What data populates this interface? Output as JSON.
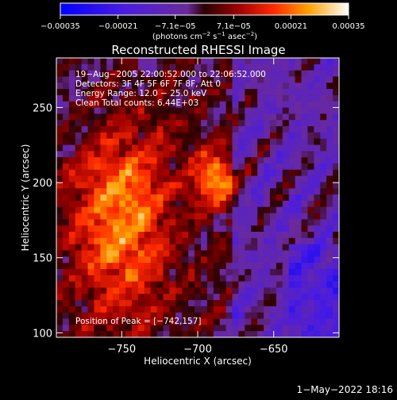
{
  "chart_data": {
    "type": "heatmap",
    "title": "Reconstructed RHESSI Image",
    "xlabel": "Heliocentric X (arcsec)",
    "ylabel": "Heliocentric Y (arcsec)",
    "xlim": [
      -793,
      -607
    ],
    "ylim": [
      97,
      283
    ],
    "x_ticks": [
      -750,
      -700,
      -650
    ],
    "x_tick_labels": [
      "−750",
      "−700",
      "−650"
    ],
    "y_ticks": [
      100,
      150,
      200,
      250
    ],
    "y_tick_labels": [
      "100",
      "150",
      "200",
      "250"
    ],
    "colorbar": {
      "range": [
        -0.00035,
        0.00035
      ],
      "ticks": [
        -0.00035,
        -0.00021,
        -7.1e-05,
        7.1e-05,
        0.00021,
        0.00035
      ],
      "tick_labels": [
        "−0.00035",
        "−0.00021",
        "−7.1e−05",
        "7.1e−05",
        "0.00021",
        "0.00035"
      ],
      "unit_prefix": "(photons cm",
      "unit_sup1": "−2",
      "unit_mid1": " s",
      "unit_sup2": "−1",
      "unit_mid2": " asec",
      "unit_sup3": "−2",
      "unit_suffix": ")"
    },
    "annotations": [
      "19−Aug−2005 22:00:52.000 to 22:06:52.000",
      "Detectors: 3F 4F 5F 6F 7F 8F, Att 0",
      "Energy Range: 12.0 − 25.0 keV",
      "Clean     Total counts: 6.44E+03"
    ],
    "peak_label": "Position of Peak = [−742,157]",
    "peak_position": [
      -742,
      157
    ],
    "grid": false
  },
  "footer": {
    "date": "1−May−2022 18:16"
  }
}
